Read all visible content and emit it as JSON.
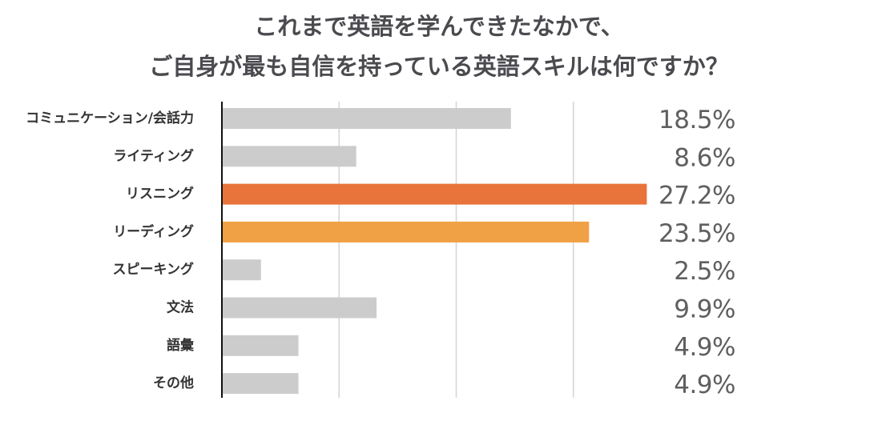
{
  "chart_data": {
    "type": "bar",
    "orientation": "horizontal",
    "title_lines": [
      "これまで英語を学んできたなかで、",
      "ご自身が最も自信を持っている英語スキルは何ですか？"
    ],
    "categories": [
      "コミュニケーション/会話力",
      "ライティング",
      "リスニング",
      "リーディング",
      "スピーキング",
      "文法",
      "語彙",
      "その他"
    ],
    "values": [
      18.5,
      8.6,
      27.2,
      23.5,
      2.5,
      9.9,
      4.9,
      4.9
    ],
    "value_labels": [
      "18.5%",
      "8.6%",
      "27.2%",
      "23.5%",
      "2.5%",
      "9.9%",
      "4.9%",
      "4.9%"
    ],
    "bar_colors": [
      "#cccccc",
      "#cccccc",
      "#e8743b",
      "#f0a045",
      "#cccccc",
      "#cccccc",
      "#cccccc",
      "#cccccc"
    ],
    "xlim": [
      0,
      30
    ],
    "gridlines": [
      7.5,
      15,
      22.5
    ],
    "grid": true,
    "legend": false,
    "xlabel": "",
    "ylabel": ""
  }
}
